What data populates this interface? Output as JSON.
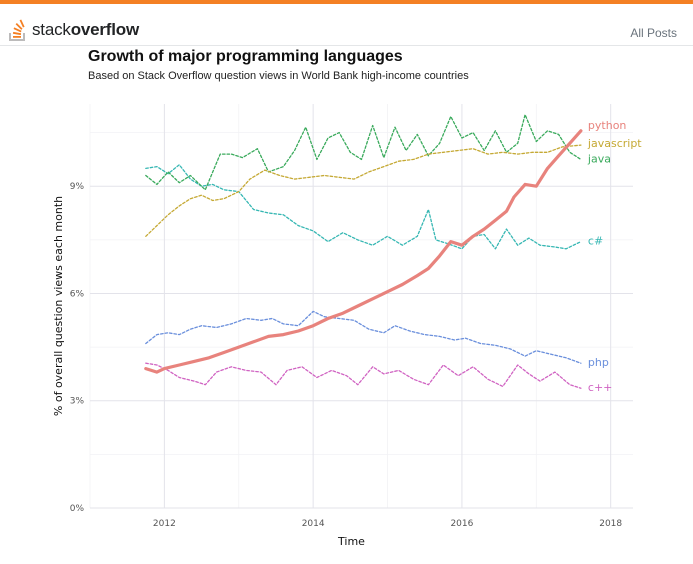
{
  "header": {
    "brand_plain": "stack",
    "brand_bold": "overflow",
    "brand_icon": "stackoverflow-logo-icon",
    "all_posts": "All Posts"
  },
  "chart_data": {
    "type": "line",
    "title": "Growth of major programming languages",
    "subtitle": "Based on Stack Overflow question views in World Bank high-income countries",
    "xlabel": "Time",
    "ylabel": "% of overall question views each month",
    "xlim": [
      2011.0,
      2018.3
    ],
    "ylim": [
      0,
      11.3
    ],
    "x_ticks": [
      2012,
      2014,
      2016,
      2018
    ],
    "x_tick_labels": [
      "2012",
      "2014",
      "2016",
      "2018"
    ],
    "y_ticks": [
      0,
      3,
      6,
      9
    ],
    "y_tick_labels": [
      "0%",
      "3%",
      "6%",
      "9%"
    ],
    "grid": true,
    "legend": "direct labels at right end of lines",
    "series": [
      {
        "name": "python",
        "color": "#e8837d",
        "style": "solid",
        "points": [
          [
            2011.75,
            3.9
          ],
          [
            2011.9,
            3.8
          ],
          [
            2012.0,
            3.9
          ],
          [
            2012.2,
            4.0
          ],
          [
            2012.4,
            4.1
          ],
          [
            2012.6,
            4.2
          ],
          [
            2012.8,
            4.35
          ],
          [
            2013.0,
            4.5
          ],
          [
            2013.2,
            4.65
          ],
          [
            2013.4,
            4.8
          ],
          [
            2013.6,
            4.85
          ],
          [
            2013.8,
            4.95
          ],
          [
            2014.0,
            5.1
          ],
          [
            2014.2,
            5.3
          ],
          [
            2014.4,
            5.45
          ],
          [
            2014.6,
            5.65
          ],
          [
            2014.8,
            5.85
          ],
          [
            2015.0,
            6.05
          ],
          [
            2015.2,
            6.25
          ],
          [
            2015.4,
            6.5
          ],
          [
            2015.55,
            6.7
          ],
          [
            2015.7,
            7.05
          ],
          [
            2015.85,
            7.45
          ],
          [
            2016.0,
            7.35
          ],
          [
            2016.15,
            7.6
          ],
          [
            2016.3,
            7.8
          ],
          [
            2016.45,
            8.05
          ],
          [
            2016.6,
            8.3
          ],
          [
            2016.7,
            8.7
          ],
          [
            2016.85,
            9.05
          ],
          [
            2017.0,
            9.0
          ],
          [
            2017.15,
            9.5
          ],
          [
            2017.3,
            9.85
          ],
          [
            2017.45,
            10.2
          ],
          [
            2017.6,
            10.55
          ]
        ]
      },
      {
        "name": "javascript",
        "color": "#c5a934",
        "style": "dashed",
        "points": [
          [
            2011.75,
            7.6
          ],
          [
            2011.9,
            7.9
          ],
          [
            2012.05,
            8.2
          ],
          [
            2012.2,
            8.45
          ],
          [
            2012.35,
            8.65
          ],
          [
            2012.5,
            8.75
          ],
          [
            2012.65,
            8.6
          ],
          [
            2012.8,
            8.65
          ],
          [
            2013.0,
            8.85
          ],
          [
            2013.15,
            9.2
          ],
          [
            2013.35,
            9.45
          ],
          [
            2013.55,
            9.3
          ],
          [
            2013.75,
            9.2
          ],
          [
            2013.95,
            9.25
          ],
          [
            2014.15,
            9.3
          ],
          [
            2014.35,
            9.25
          ],
          [
            2014.55,
            9.2
          ],
          [
            2014.75,
            9.4
          ],
          [
            2014.95,
            9.55
          ],
          [
            2015.15,
            9.7
          ],
          [
            2015.35,
            9.75
          ],
          [
            2015.55,
            9.9
          ],
          [
            2015.75,
            9.95
          ],
          [
            2015.95,
            10.0
          ],
          [
            2016.15,
            10.05
          ],
          [
            2016.35,
            9.9
          ],
          [
            2016.55,
            9.95
          ],
          [
            2016.75,
            9.9
          ],
          [
            2016.95,
            9.95
          ],
          [
            2017.15,
            9.95
          ],
          [
            2017.35,
            10.1
          ],
          [
            2017.6,
            10.15
          ]
        ]
      },
      {
        "name": "java",
        "color": "#3aaa5c",
        "style": "dashed",
        "points": [
          [
            2011.75,
            9.3
          ],
          [
            2011.9,
            9.05
          ],
          [
            2012.05,
            9.4
          ],
          [
            2012.2,
            9.1
          ],
          [
            2012.35,
            9.3
          ],
          [
            2012.55,
            8.9
          ],
          [
            2012.75,
            9.9
          ],
          [
            2012.9,
            9.9
          ],
          [
            2013.05,
            9.8
          ],
          [
            2013.25,
            10.05
          ],
          [
            2013.4,
            9.4
          ],
          [
            2013.6,
            9.55
          ],
          [
            2013.75,
            10.0
          ],
          [
            2013.9,
            10.65
          ],
          [
            2014.05,
            9.75
          ],
          [
            2014.2,
            10.35
          ],
          [
            2014.35,
            10.5
          ],
          [
            2014.5,
            9.95
          ],
          [
            2014.65,
            9.75
          ],
          [
            2014.8,
            10.7
          ],
          [
            2014.95,
            9.8
          ],
          [
            2015.1,
            10.65
          ],
          [
            2015.25,
            10.0
          ],
          [
            2015.4,
            10.45
          ],
          [
            2015.55,
            9.85
          ],
          [
            2015.7,
            10.2
          ],
          [
            2015.85,
            10.95
          ],
          [
            2016.0,
            10.35
          ],
          [
            2016.15,
            10.5
          ],
          [
            2016.3,
            10.0
          ],
          [
            2016.45,
            10.55
          ],
          [
            2016.6,
            9.95
          ],
          [
            2016.75,
            10.2
          ],
          [
            2016.85,
            11.0
          ],
          [
            2017.0,
            10.25
          ],
          [
            2017.15,
            10.55
          ],
          [
            2017.3,
            10.45
          ],
          [
            2017.45,
            9.95
          ],
          [
            2017.6,
            9.75
          ]
        ]
      },
      {
        "name": "c#",
        "color": "#36b7b3",
        "style": "dashed",
        "points": [
          [
            2011.75,
            9.5
          ],
          [
            2011.9,
            9.55
          ],
          [
            2012.05,
            9.35
          ],
          [
            2012.2,
            9.6
          ],
          [
            2012.35,
            9.2
          ],
          [
            2012.5,
            9.0
          ],
          [
            2012.65,
            9.05
          ],
          [
            2012.8,
            8.9
          ],
          [
            2013.0,
            8.85
          ],
          [
            2013.2,
            8.35
          ],
          [
            2013.4,
            8.25
          ],
          [
            2013.6,
            8.2
          ],
          [
            2013.8,
            7.9
          ],
          [
            2014.0,
            7.75
          ],
          [
            2014.2,
            7.45
          ],
          [
            2014.4,
            7.7
          ],
          [
            2014.6,
            7.5
          ],
          [
            2014.8,
            7.35
          ],
          [
            2015.0,
            7.6
          ],
          [
            2015.2,
            7.35
          ],
          [
            2015.4,
            7.6
          ],
          [
            2015.55,
            8.35
          ],
          [
            2015.65,
            7.5
          ],
          [
            2015.8,
            7.4
          ],
          [
            2016.0,
            7.25
          ],
          [
            2016.15,
            7.6
          ],
          [
            2016.3,
            7.65
          ],
          [
            2016.45,
            7.25
          ],
          [
            2016.6,
            7.8
          ],
          [
            2016.75,
            7.35
          ],
          [
            2016.9,
            7.55
          ],
          [
            2017.05,
            7.35
          ],
          [
            2017.25,
            7.3
          ],
          [
            2017.4,
            7.25
          ],
          [
            2017.6,
            7.45
          ]
        ]
      },
      {
        "name": "php",
        "color": "#6a8fdc",
        "style": "dashed",
        "points": [
          [
            2011.75,
            4.6
          ],
          [
            2011.9,
            4.85
          ],
          [
            2012.05,
            4.9
          ],
          [
            2012.2,
            4.85
          ],
          [
            2012.35,
            5.0
          ],
          [
            2012.5,
            5.1
          ],
          [
            2012.7,
            5.05
          ],
          [
            2012.9,
            5.15
          ],
          [
            2013.1,
            5.3
          ],
          [
            2013.3,
            5.25
          ],
          [
            2013.45,
            5.3
          ],
          [
            2013.6,
            5.15
          ],
          [
            2013.8,
            5.1
          ],
          [
            2014.0,
            5.5
          ],
          [
            2014.15,
            5.35
          ],
          [
            2014.35,
            5.3
          ],
          [
            2014.55,
            5.25
          ],
          [
            2014.75,
            5.0
          ],
          [
            2014.95,
            4.9
          ],
          [
            2015.1,
            5.1
          ],
          [
            2015.3,
            4.95
          ],
          [
            2015.5,
            4.85
          ],
          [
            2015.7,
            4.8
          ],
          [
            2015.9,
            4.7
          ],
          [
            2016.05,
            4.75
          ],
          [
            2016.25,
            4.6
          ],
          [
            2016.45,
            4.55
          ],
          [
            2016.65,
            4.45
          ],
          [
            2016.85,
            4.25
          ],
          [
            2017.0,
            4.4
          ],
          [
            2017.2,
            4.3
          ],
          [
            2017.4,
            4.2
          ],
          [
            2017.6,
            4.05
          ]
        ]
      },
      {
        "name": "c++",
        "color": "#d063c2",
        "style": "dashed",
        "points": [
          [
            2011.75,
            4.05
          ],
          [
            2011.9,
            4.0
          ],
          [
            2012.05,
            3.85
          ],
          [
            2012.2,
            3.65
          ],
          [
            2012.4,
            3.55
          ],
          [
            2012.55,
            3.45
          ],
          [
            2012.7,
            3.8
          ],
          [
            2012.9,
            3.95
          ],
          [
            2013.1,
            3.85
          ],
          [
            2013.3,
            3.8
          ],
          [
            2013.5,
            3.45
          ],
          [
            2013.65,
            3.85
          ],
          [
            2013.85,
            3.95
          ],
          [
            2014.05,
            3.65
          ],
          [
            2014.25,
            3.85
          ],
          [
            2014.45,
            3.7
          ],
          [
            2014.6,
            3.45
          ],
          [
            2014.8,
            3.95
          ],
          [
            2014.95,
            3.75
          ],
          [
            2015.15,
            3.85
          ],
          [
            2015.35,
            3.6
          ],
          [
            2015.55,
            3.45
          ],
          [
            2015.75,
            4.0
          ],
          [
            2015.95,
            3.7
          ],
          [
            2016.15,
            3.95
          ],
          [
            2016.35,
            3.6
          ],
          [
            2016.55,
            3.4
          ],
          [
            2016.75,
            4.0
          ],
          [
            2016.9,
            3.75
          ],
          [
            2017.05,
            3.55
          ],
          [
            2017.25,
            3.8
          ],
          [
            2017.45,
            3.45
          ],
          [
            2017.6,
            3.35
          ]
        ]
      }
    ]
  }
}
